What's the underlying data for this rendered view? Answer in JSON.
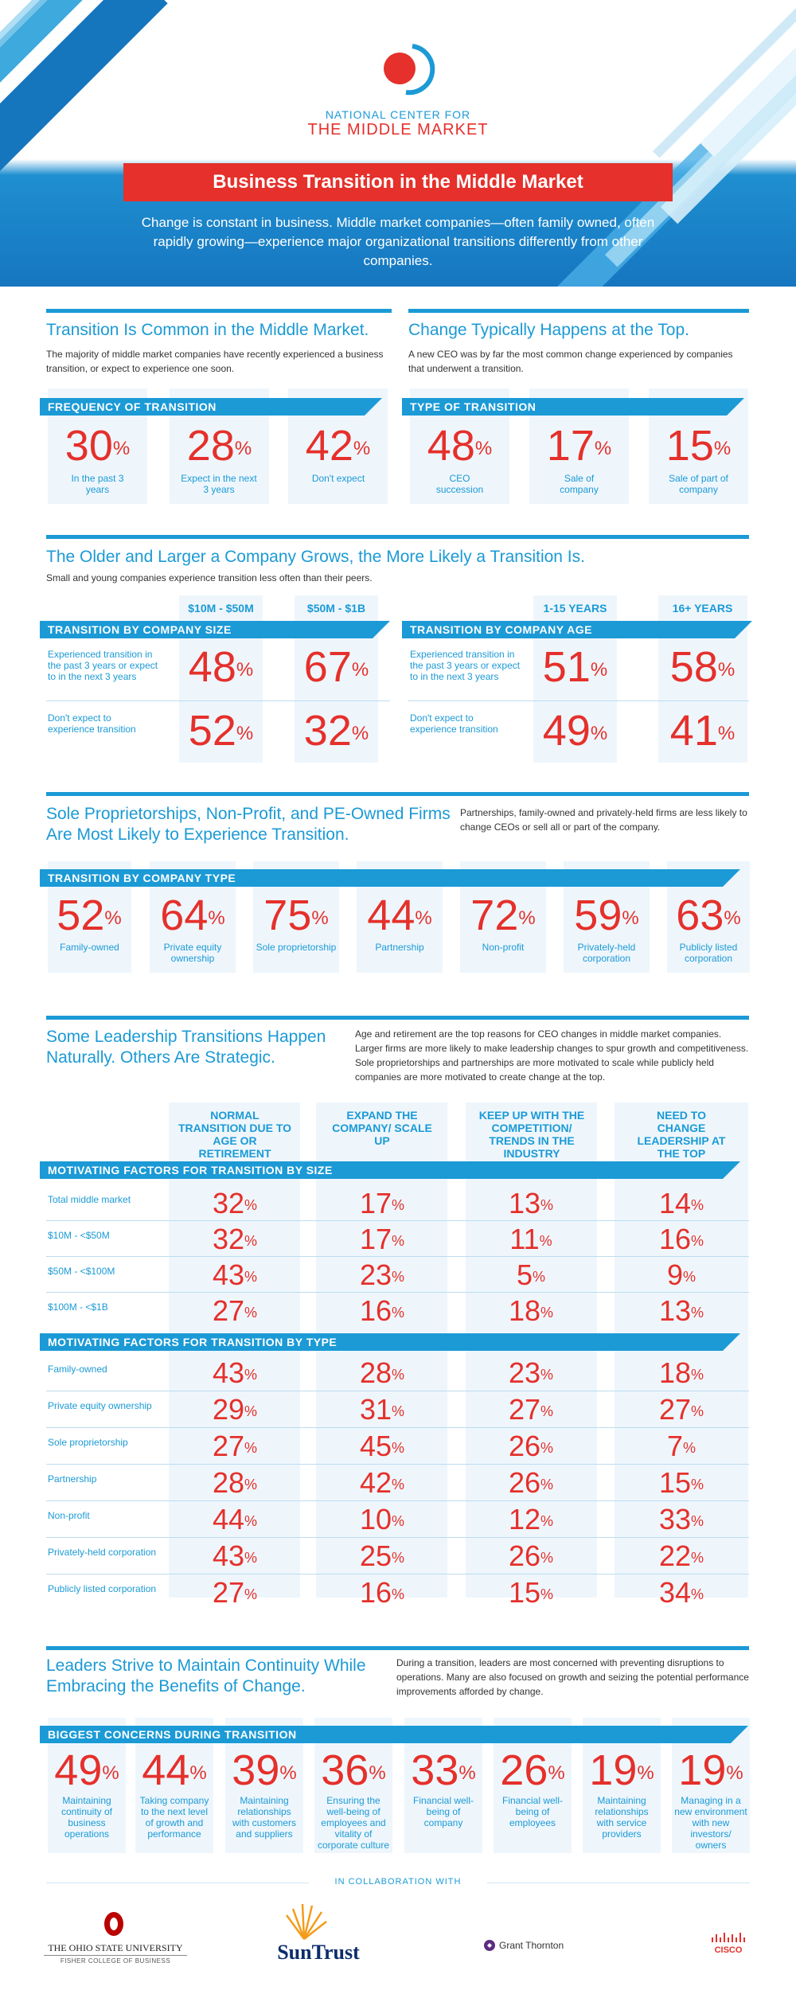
{
  "header": {
    "org_line1": "NATIONAL CENTER FOR",
    "org_line2": "THE MIDDLE MARKET",
    "title": "Business Transition in the Middle Market",
    "intro": "Change is constant in business. Middle market companies—often family owned, often rapidly growing—experience major organizational transitions differently from other companies."
  },
  "s1": {
    "left_title": "Transition Is Common in the Middle Market.",
    "left_text": "The majority of middle market companies have recently experienced a business transition, or expect to experience one soon.",
    "left_band": "FREQUENCY OF TRANSITION",
    "left_stats": [
      {
        "value": "30",
        "label": "In the past 3 years"
      },
      {
        "value": "28",
        "label": "Expect in the next 3 years"
      },
      {
        "value": "42",
        "label": "Don't expect"
      }
    ],
    "right_title": "Change Typically Happens at the Top.",
    "right_text": "A new CEO was by far the most common change experienced by companies that underwent a transition.",
    "right_band": "TYPE OF TRANSITION",
    "right_stats": [
      {
        "value": "48",
        "label": "CEO succession"
      },
      {
        "value": "17",
        "label": "Sale of company"
      },
      {
        "value": "15",
        "label": "Sale of part of company"
      }
    ]
  },
  "s2": {
    "title": "The Older and Larger a Company Grows, the More Likely a Transition Is.",
    "text": "Small and young companies experience transition less often than their peers.",
    "size": {
      "band": "TRANSITION BY COMPANY SIZE",
      "cols": [
        "$10M - $50M",
        "$50M - $1B"
      ],
      "rows": [
        {
          "label": "Experienced transition in the past 3 years or expect to in the next 3 years",
          "values": [
            "48",
            "67"
          ]
        },
        {
          "label": "Don't expect to experience transition",
          "values": [
            "52",
            "32"
          ]
        }
      ]
    },
    "age": {
      "band": "TRANSITION BY COMPANY AGE",
      "cols": [
        "1-15 YEARS",
        "16+ YEARS"
      ],
      "rows": [
        {
          "label": "Experienced transition in the past 3 years or expect to in the next 3 years",
          "values": [
            "51",
            "58"
          ]
        },
        {
          "label": "Don't expect to experience transition",
          "values": [
            "49",
            "41"
          ]
        }
      ]
    }
  },
  "s3": {
    "title": "Sole Proprietorships, Non-Profit, and PE-Owned Firms Are Most Likely to Experience Transition.",
    "text": "Partnerships, family-owned and privately-held firms are less likely to change CEOs or sell all or part of the company.",
    "band": "TRANSITION BY COMPANY TYPE",
    "stats": [
      {
        "value": "52",
        "label": "Family-owned"
      },
      {
        "value": "64",
        "label": "Private equity ownership"
      },
      {
        "value": "75",
        "label": "Sole proprietorship"
      },
      {
        "value": "44",
        "label": "Partnership"
      },
      {
        "value": "72",
        "label": "Non-profit"
      },
      {
        "value": "59",
        "label": "Privately-held corporation"
      },
      {
        "value": "63",
        "label": "Publicly listed corporation"
      }
    ]
  },
  "s4": {
    "title": "Some Leadership Transitions Happen Naturally. Others Are Strategic.",
    "text": "Age and retirement are the top reasons for CEO changes in middle market companies. Larger firms are more likely to make leadership changes to spur growth and competitiveness. Sole proprietorships and partnerships are more motivated to scale while publicly held companies are more motivated to create change at the top.",
    "cols": [
      "NORMAL TRANSITION DUE TO AGE OR RETIREMENT",
      "EXPAND THE COMPANY/ SCALE UP",
      "KEEP UP WITH THE COMPETITION/ TRENDS IN THE INDUSTRY",
      "NEED TO CHANGE LEADERSHIP AT THE TOP"
    ],
    "size_band": "MOTIVATING FACTORS FOR TRANSITION BY SIZE",
    "size_rows": [
      {
        "label": "Total middle market",
        "values": [
          "32",
          "17",
          "13",
          "14"
        ]
      },
      {
        "label": "$10M - <$50M",
        "values": [
          "32",
          "17",
          "11",
          "16"
        ]
      },
      {
        "label": "$50M - <$100M",
        "values": [
          "43",
          "23",
          "5",
          "9"
        ]
      },
      {
        "label": "$100M - <$1B",
        "values": [
          "27",
          "16",
          "18",
          "13"
        ]
      }
    ],
    "type_band": "MOTIVATING FACTORS FOR TRANSITION BY TYPE",
    "type_rows": [
      {
        "label": "Family-owned",
        "values": [
          "43",
          "28",
          "23",
          "18"
        ]
      },
      {
        "label": "Private equity ownership",
        "values": [
          "29",
          "31",
          "27",
          "27"
        ]
      },
      {
        "label": "Sole proprietorship",
        "values": [
          "27",
          "45",
          "26",
          "7"
        ]
      },
      {
        "label": "Partnership",
        "values": [
          "28",
          "42",
          "26",
          "15"
        ]
      },
      {
        "label": "Non-profit",
        "values": [
          "44",
          "10",
          "12",
          "33"
        ]
      },
      {
        "label": "Privately-held corporation",
        "values": [
          "43",
          "25",
          "26",
          "22"
        ]
      },
      {
        "label": "Publicly listed corporation",
        "values": [
          "27",
          "16",
          "15",
          "34"
        ]
      }
    ]
  },
  "s5": {
    "title": "Leaders Strive to Maintain Continuity While Embracing the Benefits of Change.",
    "text": "During a transition, leaders are most concerned with preventing disruptions to operations. Many are also focused on growth and seizing the potential performance improvements afforded by change.",
    "band": "BIGGEST CONCERNS DURING TRANSITION",
    "stats": [
      {
        "value": "49",
        "label": "Maintaining continuity of business operations"
      },
      {
        "value": "44",
        "label": "Taking company to the next level of growth and performance"
      },
      {
        "value": "39",
        "label": "Maintaining relationships with customers and suppliers"
      },
      {
        "value": "36",
        "label": "Ensuring the well-being of employees and vitality of corporate culture"
      },
      {
        "value": "33",
        "label": "Financial well-being of company"
      },
      {
        "value": "26",
        "label": "Financial well-being of employees"
      },
      {
        "value": "19",
        "label": "Maintaining relationships with service providers"
      },
      {
        "value": "19",
        "label": "Managing in a new environment with new investors/ owners"
      }
    ]
  },
  "footer": {
    "collab": "IN COLLABORATION WITH",
    "osu_name": "THE OHIO STATE UNIVERSITY",
    "osu_sub": "FISHER COLLEGE OF BUSINESS",
    "suntrust": "SunTrust",
    "grant": "Grant Thornton",
    "cisco": "CISCO"
  },
  "pct": "%",
  "colors": {
    "blue": "#1b9ad6",
    "red": "#e5302b",
    "pale": "#eef6fc"
  }
}
